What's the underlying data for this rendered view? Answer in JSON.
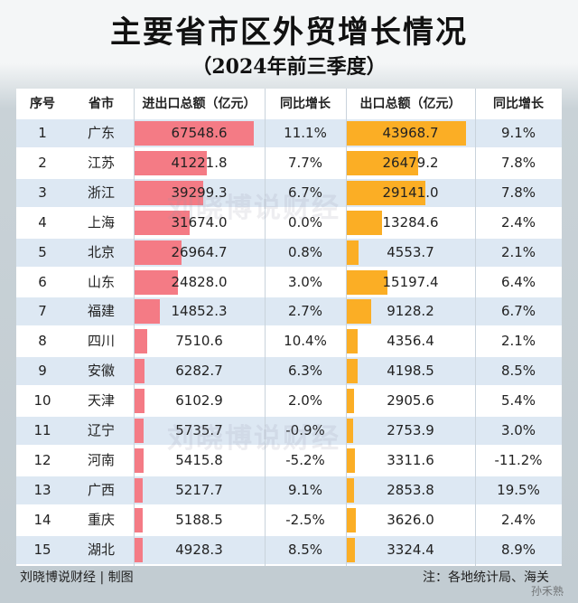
{
  "title": "主要省市区外贸增长情况",
  "subtitle": "（2024年前三季度）",
  "headers": {
    "rank": "序号",
    "province": "省市",
    "total": "进出口总额（亿元）",
    "total_growth": "同比增长",
    "export": "出口总额（亿元）",
    "export_growth": "同比增长"
  },
  "rows": [
    {
      "rank": "1",
      "province": "广东",
      "total": "67548.6",
      "total_growth": "11.1%",
      "export": "43968.7",
      "export_growth": "9.1%"
    },
    {
      "rank": "2",
      "province": "江苏",
      "total": "41221.8",
      "total_growth": "7.7%",
      "export": "26479.2",
      "export_growth": "7.8%"
    },
    {
      "rank": "3",
      "province": "浙江",
      "total": "39299.3",
      "total_growth": "6.7%",
      "export": "29141.0",
      "export_growth": "7.8%"
    },
    {
      "rank": "4",
      "province": "上海",
      "total": "31674.0",
      "total_growth": "0.0%",
      "export": "13284.6",
      "export_growth": "2.4%"
    },
    {
      "rank": "5",
      "province": "北京",
      "total": "26964.7",
      "total_growth": "0.8%",
      "export": "4553.7",
      "export_growth": "2.1%"
    },
    {
      "rank": "6",
      "province": "山东",
      "total": "24828.0",
      "total_growth": "3.0%",
      "export": "15197.4",
      "export_growth": "6.4%"
    },
    {
      "rank": "7",
      "province": "福建",
      "total": "14852.3",
      "total_growth": "2.7%",
      "export": "9128.2",
      "export_growth": "6.7%"
    },
    {
      "rank": "8",
      "province": "四川",
      "total": "7510.6",
      "total_growth": "10.4%",
      "export": "4356.4",
      "export_growth": "2.1%"
    },
    {
      "rank": "9",
      "province": "安徽",
      "total": "6282.7",
      "total_growth": "6.3%",
      "export": "4198.5",
      "export_growth": "8.5%"
    },
    {
      "rank": "10",
      "province": "天津",
      "total": "6102.9",
      "total_growth": "2.0%",
      "export": "2905.6",
      "export_growth": "5.4%"
    },
    {
      "rank": "11",
      "province": "辽宁",
      "total": "5735.7",
      "total_growth": "-0.9%",
      "export": "2753.9",
      "export_growth": "3.0%"
    },
    {
      "rank": "12",
      "province": "河南",
      "total": "5415.8",
      "total_growth": "-5.2%",
      "export": "3311.6",
      "export_growth": "-11.2%"
    },
    {
      "rank": "13",
      "province": "广西",
      "total": "5217.7",
      "total_growth": "9.1%",
      "export": "2853.8",
      "export_growth": "19.5%"
    },
    {
      "rank": "14",
      "province": "重庆",
      "total": "5188.5",
      "total_growth": "-2.5%",
      "export": "3626.0",
      "export_growth": "2.4%"
    },
    {
      "rank": "15",
      "province": "湖北",
      "total": "4928.3",
      "total_growth": "8.5%",
      "export": "3324.4",
      "export_growth": "8.9%"
    }
  ],
  "footer": {
    "credit": "刘晓博说财经 | 制图",
    "note": "注：各地统计局、海关"
  },
  "watermark": "刘晓博说财经",
  "weibo_tag": "孙禾熟",
  "colors": {
    "total_bar": "#f47b85",
    "export_bar": "#fbae25",
    "stripe": "#dde8f3"
  },
  "chart_data": {
    "type": "table",
    "title": "主要省市区外贸增长情况",
    "subtitle": "（2024年前三季度）",
    "columns": [
      "序号",
      "省市",
      "进出口总额（亿元）",
      "同比增长",
      "出口总额（亿元）",
      "同比增长"
    ],
    "categories": [
      "广东",
      "江苏",
      "浙江",
      "上海",
      "北京",
      "山东",
      "福建",
      "四川",
      "安徽",
      "天津",
      "辽宁",
      "河南",
      "广西",
      "重庆",
      "湖北"
    ],
    "series": [
      {
        "name": "进出口总额（亿元）",
        "values": [
          67548.6,
          41221.8,
          39299.3,
          31674.0,
          26964.7,
          24828.0,
          14852.3,
          7510.6,
          6282.7,
          6102.9,
          5735.7,
          5415.8,
          5217.7,
          5188.5,
          4928.3
        ]
      },
      {
        "name": "同比增长",
        "values": [
          11.1,
          7.7,
          6.7,
          0.0,
          0.8,
          3.0,
          2.7,
          10.4,
          6.3,
          2.0,
          -0.9,
          -5.2,
          9.1,
          -2.5,
          8.5
        ]
      },
      {
        "name": "出口总额（亿元）",
        "values": [
          43968.7,
          26479.2,
          29141.0,
          13284.6,
          4553.7,
          15197.4,
          9128.2,
          4356.4,
          4198.5,
          2905.6,
          2753.9,
          3311.6,
          2853.8,
          3626.0,
          3324.4
        ]
      },
      {
        "name": "同比增长",
        "values": [
          9.1,
          7.8,
          7.8,
          2.4,
          2.1,
          6.4,
          6.7,
          2.1,
          8.5,
          5.4,
          3.0,
          -11.2,
          19.5,
          2.4,
          8.9
        ]
      }
    ]
  }
}
